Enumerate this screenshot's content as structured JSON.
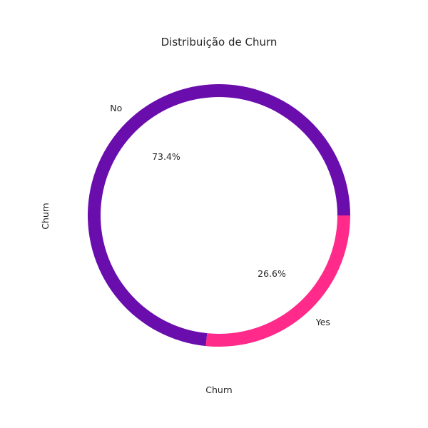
{
  "chart_data": {
    "type": "pie",
    "title": "Distribuição de Churn",
    "xlabel": "Churn",
    "ylabel": "Churn",
    "legend": "none",
    "grid": false,
    "donut": true,
    "slices": [
      {
        "label": "No",
        "value": 73.4,
        "pct_label": "73.4%",
        "color": "#6a0dad"
      },
      {
        "label": "Yes",
        "value": 26.6,
        "pct_label": "26.6%",
        "color": "#ff2a8a"
      }
    ]
  }
}
